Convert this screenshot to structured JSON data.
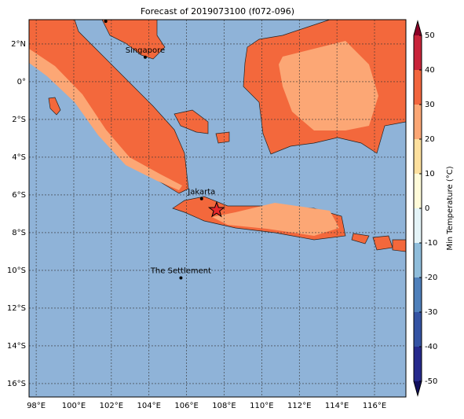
{
  "title": "Forecast of 2019073100 (f072-096)",
  "map": {
    "lonlim": [
      97.62,
      117.67
    ],
    "latlim": [
      -16.71,
      3.29
    ],
    "ocean_color": "#8fb3d8",
    "xticks": [
      {
        "value": 98,
        "label": "98°E"
      },
      {
        "value": 100,
        "label": "100°E"
      },
      {
        "value": 102,
        "label": "102°E"
      },
      {
        "value": 104,
        "label": "104°E"
      },
      {
        "value": 106,
        "label": "106°E"
      },
      {
        "value": 108,
        "label": "108°E"
      },
      {
        "value": 110,
        "label": "110°E"
      },
      {
        "value": 112,
        "label": "112°E"
      },
      {
        "value": 114,
        "label": "114°E"
      },
      {
        "value": 116,
        "label": "116°E"
      }
    ],
    "yticks": [
      {
        "value": 2,
        "label": "2°N"
      },
      {
        "value": 0,
        "label": "0°"
      },
      {
        "value": -2,
        "label": "2°S"
      },
      {
        "value": -4,
        "label": "4°S"
      },
      {
        "value": -6,
        "label": "6°S"
      },
      {
        "value": -8,
        "label": "8°S"
      },
      {
        "value": -10,
        "label": "10°S"
      },
      {
        "value": -12,
        "label": "12°S"
      },
      {
        "value": -14,
        "label": "14°S"
      },
      {
        "value": -16,
        "label": "16°S"
      }
    ],
    "grid": true,
    "places": [
      {
        "name": "Singapore",
        "lon": 103.8,
        "lat": 1.3
      },
      {
        "name": "Jakarta",
        "lon": 106.8,
        "lat": -6.2
      },
      {
        "name": "The Settlement",
        "lon": 105.7,
        "lat": -10.4
      }
    ],
    "dots": [
      {
        "lon": 101.7,
        "lat": 3.2
      }
    ],
    "star": {
      "lon": 107.6,
      "lat": -6.8,
      "color": "#e8282b"
    }
  },
  "colorbar": {
    "label": "Min Temperature (°C)",
    "lim": [
      -50,
      50
    ],
    "ticks": [
      -50,
      -40,
      -30,
      -20,
      -10,
      0,
      10,
      20,
      30,
      40,
      50
    ],
    "colors": [
      "#262a8c",
      "#3453a3",
      "#4f80bb",
      "#8fbddb",
      "#e4f4f8",
      "#fffbd9",
      "#fde09e",
      "#fca775",
      "#f2663e",
      "#c8243a"
    ],
    "under": "#12105e",
    "over": "#8b0026"
  }
}
